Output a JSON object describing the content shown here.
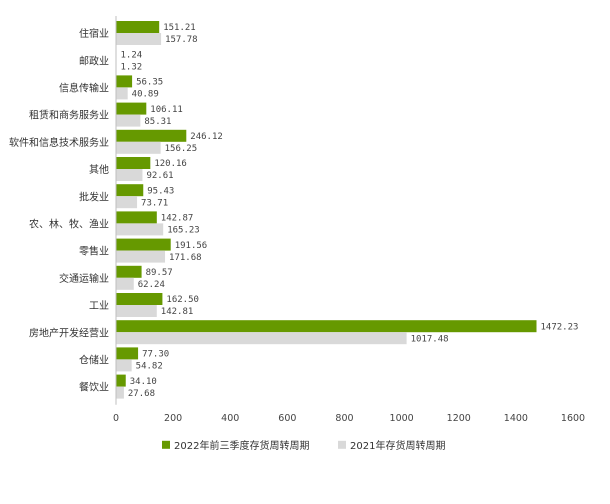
{
  "chart_data": {
    "type": "bar",
    "orientation": "horizontal",
    "categories": [
      "住宿业",
      "邮政业",
      "信息传输业",
      "租赁和商务服务业",
      "软件和信息技术服务业",
      "其他",
      "批发业",
      "农、林、牧、渔业",
      "零售业",
      "交通运输业",
      "工业",
      "房地产开发经营业",
      "仓储业",
      "餐饮业"
    ],
    "series": [
      {
        "name": "2022年前三季度存货周转周期",
        "color": "#669900",
        "values": [
          151.21,
          1.24,
          56.35,
          106.11,
          246.12,
          120.16,
          95.43,
          142.87,
          191.56,
          89.57,
          162.5,
          1472.23,
          77.3,
          34.1
        ],
        "labels": [
          "151.21",
          "1.24",
          "56.35",
          "106.11",
          "246.12",
          "120.16",
          "95.43",
          "142.87",
          "191.56",
          "89.57",
          "162.50",
          "1472.23",
          "77.30",
          "34.10"
        ]
      },
      {
        "name": "2021年存货周转周期",
        "color": "#d9d9d9",
        "values": [
          157.78,
          1.32,
          40.89,
          85.31,
          156.25,
          92.61,
          73.71,
          165.23,
          171.68,
          62.24,
          142.81,
          1017.48,
          54.82,
          27.68
        ],
        "labels": [
          "157.78",
          "1.32",
          "40.89",
          "85.31",
          "156.25",
          "92.61",
          "73.71",
          "165.23",
          "171.68",
          "62.24",
          "142.81",
          "1017.48",
          "54.82",
          "27.68"
        ]
      }
    ],
    "xlim": [
      0,
      1600
    ],
    "xticks": [
      "0",
      "200",
      "400",
      "600",
      "800",
      "1000",
      "1200",
      "1400",
      "1600"
    ],
    "xtick_values": [
      0,
      200,
      400,
      600,
      800,
      1000,
      1200,
      1400,
      1600
    ],
    "grid": false,
    "legend": "bottom",
    "title": "",
    "xlabel": "",
    "ylabel": ""
  }
}
